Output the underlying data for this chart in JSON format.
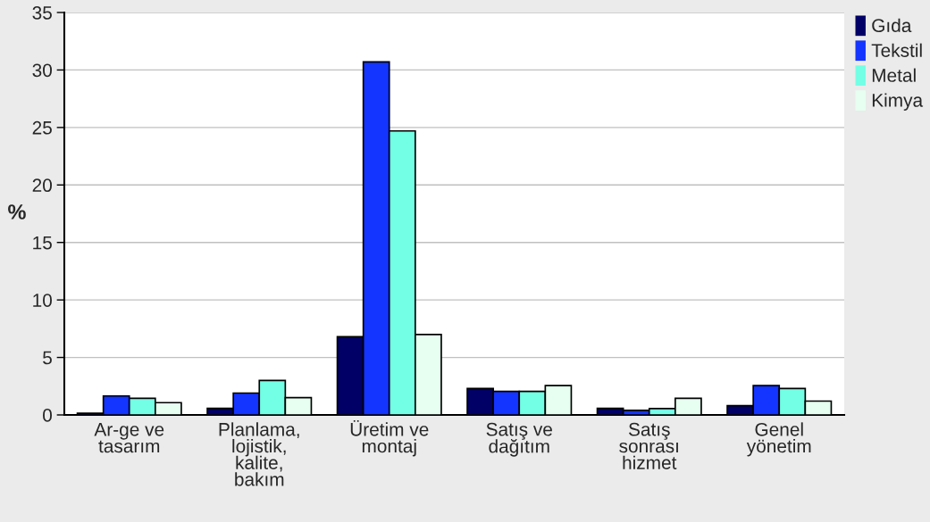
{
  "chart_data": {
    "type": "bar",
    "ylabel": "%",
    "categories": [
      "Ar-ge ve\ntasarım",
      "Planlama,\nlojistik,\nkalite,\nbakım",
      "Üretim ve\nmontaj",
      "Satış ve\ndağıtım",
      "Satış\nsonrası\nhizmet",
      "Genel\nyönetim"
    ],
    "series": [
      {
        "name": "Gıda",
        "color": "#000066",
        "values": [
          0.15,
          0.57,
          6.8,
          2.3,
          0.57,
          0.8
        ]
      },
      {
        "name": "Tekstil",
        "color": "#1434ff",
        "values": [
          1.65,
          1.9,
          30.7,
          2.05,
          0.4,
          2.55
        ]
      },
      {
        "name": "Metal",
        "color": "#73ffe6",
        "values": [
          1.45,
          3.0,
          24.7,
          2.05,
          0.55,
          2.3
        ]
      },
      {
        "name": "Kimya",
        "color": "#e6fff0",
        "values": [
          1.07,
          1.5,
          7.0,
          2.55,
          1.45,
          1.2
        ]
      }
    ],
    "ylim": [
      0,
      35
    ],
    "yticks": [
      0,
      5,
      10,
      15,
      20,
      25,
      30,
      35
    ],
    "grid": "y",
    "legend": "top right"
  }
}
